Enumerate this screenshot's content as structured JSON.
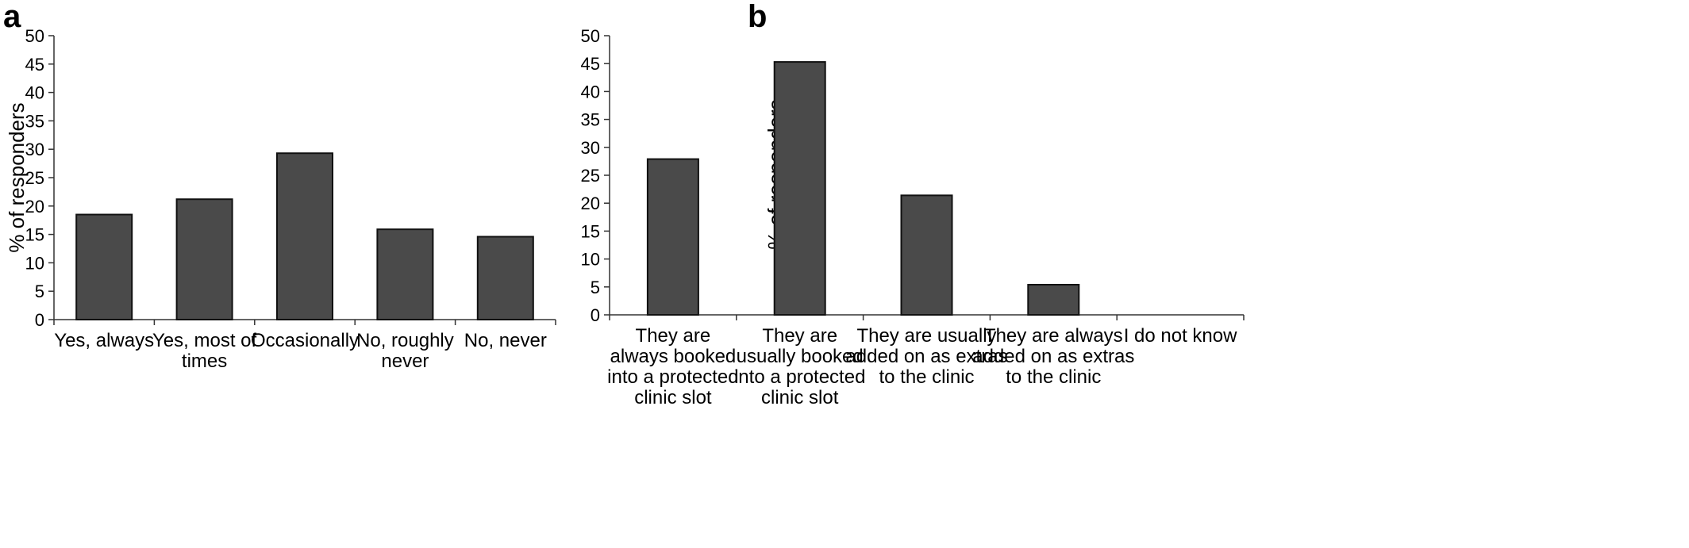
{
  "chart_data": [
    {
      "type": "bar",
      "panel_label": "a",
      "ylabel": "% of responders",
      "xlabel": "",
      "ylim": [
        0,
        50
      ],
      "yticks": [
        0,
        5,
        10,
        15,
        20,
        25,
        30,
        35,
        40,
        45,
        50
      ],
      "bar_color": "#4a4a4a",
      "categories": [
        [
          "Yes, always"
        ],
        [
          "Yes, most of",
          "times"
        ],
        [
          "Occasionally"
        ],
        [
          "No, roughly",
          "never"
        ],
        [
          "No, never"
        ]
      ],
      "values": [
        18.5,
        21.2,
        29.3,
        15.9,
        14.6
      ]
    },
    {
      "type": "bar",
      "panel_label": "b",
      "ylabel": "% of responders",
      "xlabel": "",
      "ylim": [
        0,
        50
      ],
      "yticks": [
        0,
        5,
        10,
        15,
        20,
        25,
        30,
        35,
        40,
        45,
        50
      ],
      "bar_color": "#4a4a4a",
      "categories": [
        [
          "They are",
          "always booked",
          "into a protected",
          "clinic slot"
        ],
        [
          "They are",
          "usually booked",
          "into a protected",
          "clinic slot"
        ],
        [
          "They are usually",
          "added on as extras",
          "to the clinic"
        ],
        [
          "They are always",
          "added on as extras",
          "to the clinic"
        ],
        [
          "I do not know"
        ]
      ],
      "values": [
        27.9,
        45.3,
        21.4,
        5.4,
        0
      ]
    }
  ]
}
